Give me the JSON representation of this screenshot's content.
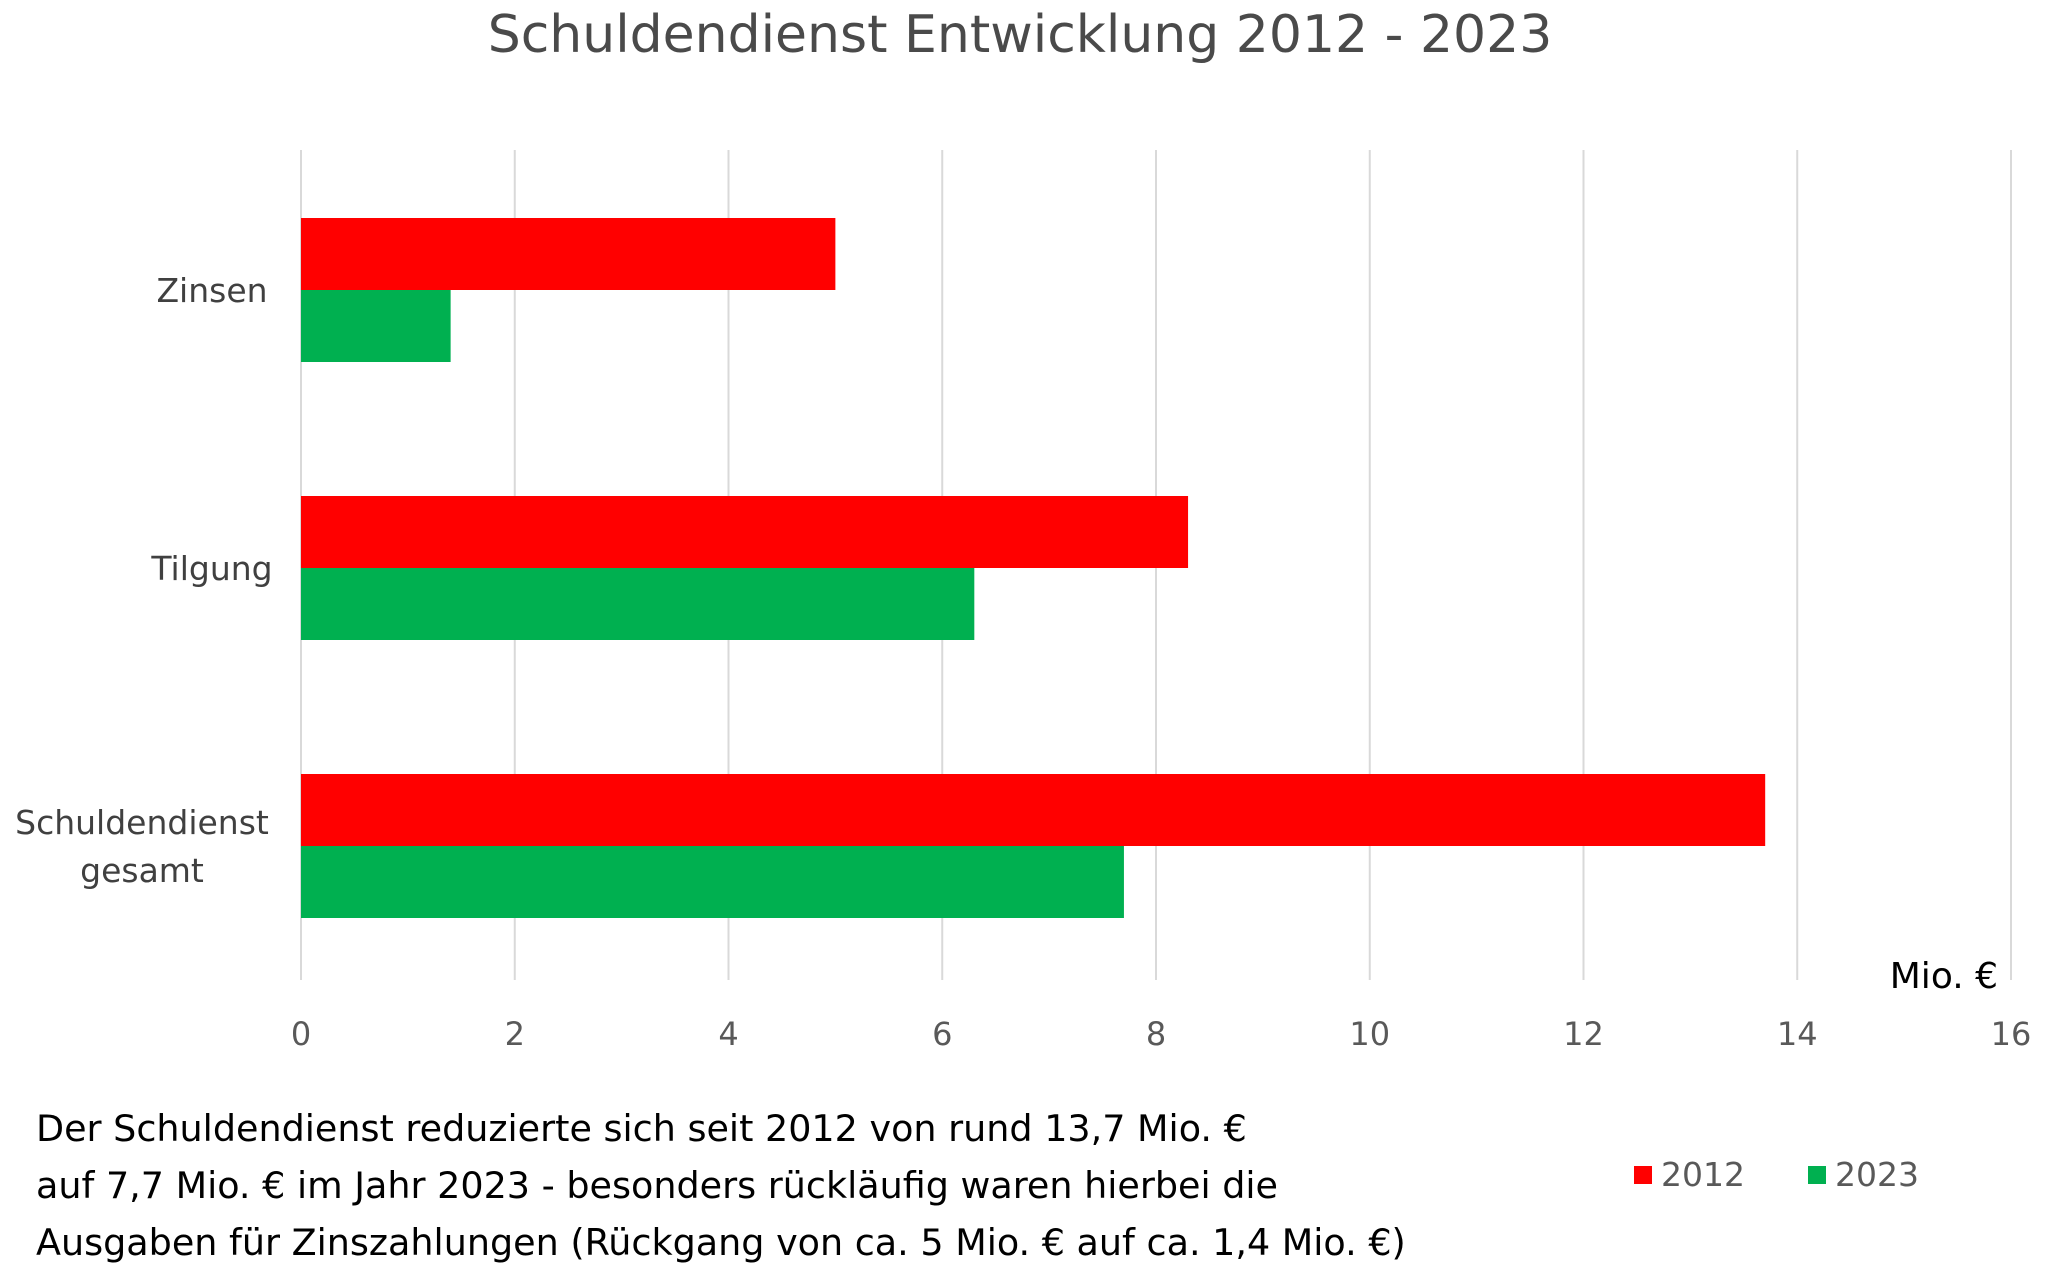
{
  "chart_data": {
    "type": "bar",
    "orientation": "horizontal",
    "title": "Schuldendienst Entwicklung 2012 - 2023",
    "categories": [
      "Zinsen",
      "Tilgung",
      "Schuldendienst gesamt"
    ],
    "category_lines": [
      [
        "Zinsen"
      ],
      [
        "Tilgung"
      ],
      [
        "Schuldendienst",
        "gesamt"
      ]
    ],
    "series": [
      {
        "name": "2012",
        "values": [
          5.0,
          8.3,
          13.7
        ],
        "color": "#ff0000"
      },
      {
        "name": "2023",
        "values": [
          1.4,
          6.3,
          7.7
        ],
        "color": "#00b050"
      }
    ],
    "xlim": [
      0,
      16
    ],
    "xticks": [
      "0",
      "2",
      "4",
      "6",
      "8",
      "10",
      "12",
      "14",
      "16"
    ],
    "xlabel": "Mio. €",
    "ylabel": "",
    "grid": "vertical",
    "legend_position": "bottom-right",
    "grid_color": "#d9d9d9"
  },
  "caption": {
    "lines": [
      "Der Schuldendienst reduzierte sich seit 2012 von rund 13,7 Mio. €",
      "auf 7,7 Mio. €  im Jahr 2023 - besonders rückläufig waren hierbei die",
      "Ausgaben für Zinszahlungen (Rückgang von ca. 5 Mio. € auf ca. 1,4 Mio. €)"
    ]
  }
}
